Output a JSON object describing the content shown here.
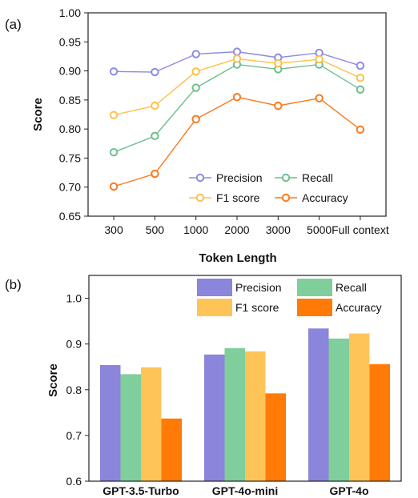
{
  "colors": {
    "precision_line": "#8d8be0",
    "recall_line": "#6cc08f",
    "f1_line": "#ffc04a",
    "accuracy_line": "#fb7a1c",
    "precision_bar": "#8b85dc",
    "recall_bar": "#7fce9c",
    "f1_bar": "#ffc457",
    "accuracy_bar": "#ff7a07"
  },
  "chart_data": [
    {
      "panel_label": "(a)",
      "type": "line",
      "xlabel": "Token Length",
      "ylabel": "Score",
      "ylim": [
        0.65,
        1.0
      ],
      "yticks": [
        "0.65",
        "0.70",
        "0.75",
        "0.80",
        "0.85",
        "0.90",
        "0.95",
        "1.00"
      ],
      "categories": [
        "300",
        "500",
        "1000",
        "2000",
        "3000",
        "5000",
        "Full context"
      ],
      "legend_position": "bottom-right",
      "series": [
        {
          "name": "Precision",
          "color_key": "precision_line",
          "values": [
            0.899,
            0.898,
            0.929,
            0.933,
            0.923,
            0.931,
            0.909
          ]
        },
        {
          "name": "Recall",
          "color_key": "recall_line",
          "values": [
            0.76,
            0.788,
            0.871,
            0.911,
            0.903,
            0.911,
            0.868
          ]
        },
        {
          "name": "F1 score",
          "color_key": "f1_line",
          "values": [
            0.824,
            0.84,
            0.899,
            0.921,
            0.913,
            0.92,
            0.888
          ]
        },
        {
          "name": "Accuracy",
          "color_key": "accuracy_line",
          "values": [
            0.701,
            0.723,
            0.817,
            0.855,
            0.84,
            0.853,
            0.799
          ]
        }
      ]
    },
    {
      "panel_label": "(b)",
      "type": "bar",
      "xlabel": "",
      "ylabel": "Score",
      "ylim": [
        0.6,
        1.05
      ],
      "yticks": [
        "0.6",
        "0.7",
        "0.8",
        "0.9",
        "1.0"
      ],
      "categories": [
        "GPT-3.5-Turbo",
        "GPT-4o-mini",
        "GPT-4o"
      ],
      "legend_position": "top-right",
      "series": [
        {
          "name": "Precision",
          "color_key": "precision_bar",
          "values": [
            0.854,
            0.877,
            0.934
          ]
        },
        {
          "name": "Recall",
          "color_key": "recall_bar",
          "values": [
            0.834,
            0.891,
            0.912
          ]
        },
        {
          "name": "F1 score",
          "color_key": "f1_bar",
          "values": [
            0.849,
            0.884,
            0.923
          ]
        },
        {
          "name": "Accuracy",
          "color_key": "accuracy_bar",
          "values": [
            0.737,
            0.792,
            0.856
          ]
        }
      ]
    }
  ]
}
